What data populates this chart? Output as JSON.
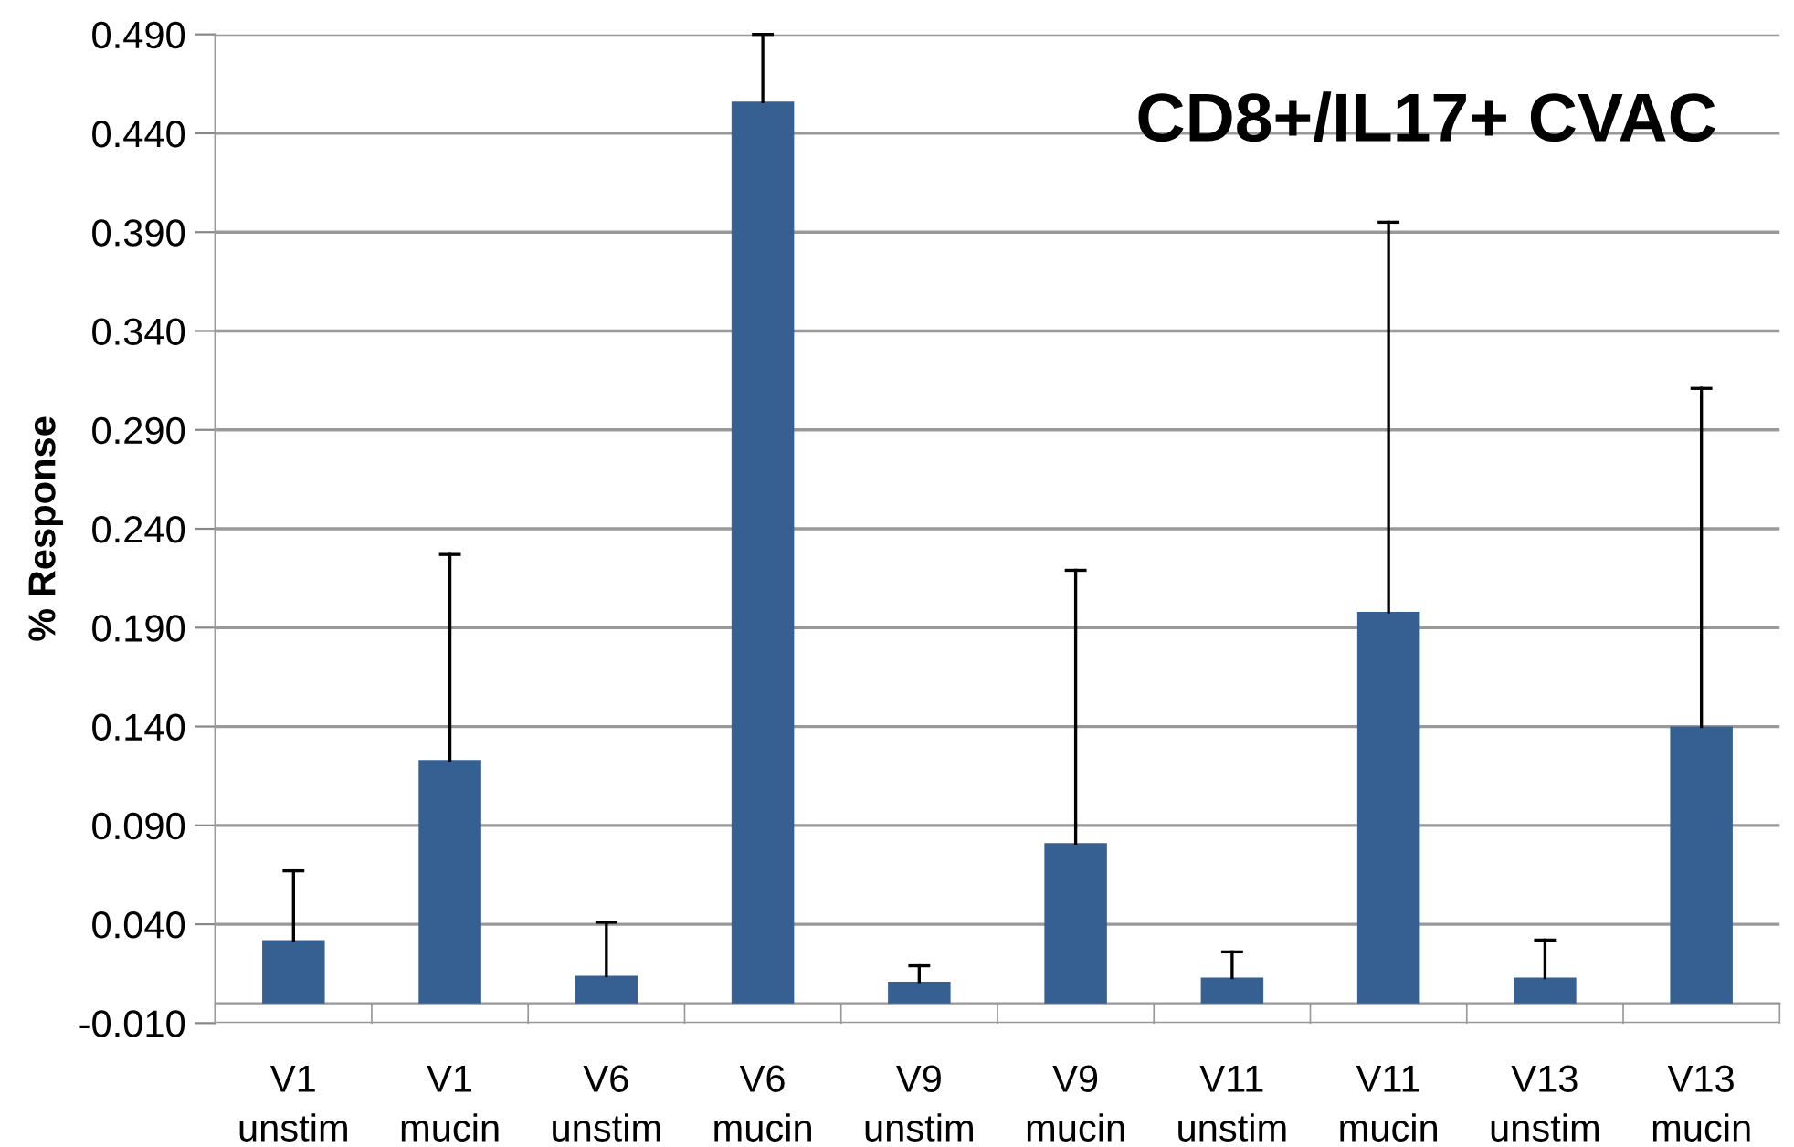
{
  "chart_data": {
    "type": "bar",
    "title": "CD8+/IL17+ CVAC",
    "ylabel": "% Response",
    "categories": [
      "V1\nunstim",
      "V1\nmucin",
      "V6\nunstim",
      "V6\nmucin",
      "V9\nunstim",
      "V9\nmucin",
      "V11\nunstim",
      "V11\nmucin",
      "V13\nunstim",
      "V13\nmucin"
    ],
    "values": [
      0.032,
      0.123,
      0.014,
      0.456,
      0.011,
      0.081,
      0.013,
      0.198,
      0.013,
      0.14
    ],
    "errors": [
      [
        0.032,
        0.067
      ],
      [
        0.123,
        0.227
      ],
      [
        0.014,
        0.041
      ],
      [
        0.456,
        0.49
      ],
      [
        0.011,
        0.019
      ],
      [
        0.081,
        0.219
      ],
      [
        0.013,
        0.026
      ],
      [
        0.198,
        0.395
      ],
      [
        0.013,
        0.032
      ],
      [
        0.14,
        0.311
      ]
    ],
    "color": "#376092",
    "ylim": [
      -0.01,
      0.49
    ],
    "yticks": [
      {
        "value": -0.01,
        "label": "-0.010"
      },
      {
        "value": 0.04,
        "label": "0.040"
      },
      {
        "value": 0.09,
        "label": "0.090"
      },
      {
        "value": 0.14,
        "label": "0.140"
      },
      {
        "value": 0.19,
        "label": "0.190"
      },
      {
        "value": 0.24,
        "label": "0.240"
      },
      {
        "value": 0.29,
        "label": "0.290"
      },
      {
        "value": 0.34,
        "label": "0.340"
      },
      {
        "value": 0.39,
        "label": "0.390"
      },
      {
        "value": 0.44,
        "label": "0.440"
      },
      {
        "value": 0.49,
        "label": "0.490"
      }
    ],
    "grid": "y"
  }
}
